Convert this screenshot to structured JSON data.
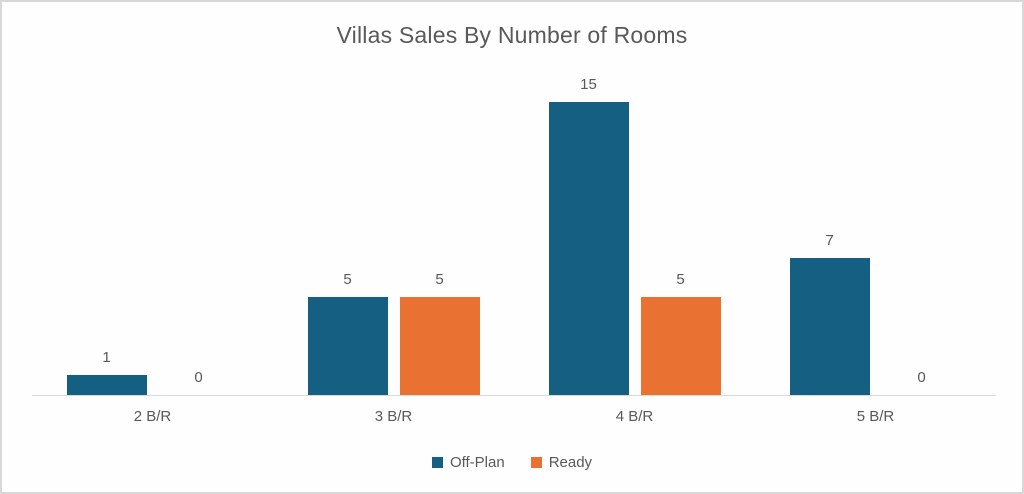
{
  "chart_data": {
    "type": "bar",
    "title": "Villas Sales By Number of Rooms",
    "categories": [
      "2 B/R",
      "3 B/R",
      "4 B/R",
      "5 B/R"
    ],
    "series": [
      {
        "name": "Off-Plan",
        "color": "#156082",
        "values": [
          1,
          5,
          15,
          7
        ]
      },
      {
        "name": "Ready",
        "color": "#E97132",
        "values": [
          0,
          5,
          5,
          0
        ]
      }
    ],
    "xlabel": "",
    "ylabel": "",
    "ylim": [
      0,
      15
    ],
    "data_labels": true,
    "grid": false,
    "legend_position": "bottom"
  },
  "colors": {
    "title_text": "#595959",
    "label_text": "#595959",
    "axis_line": "#d9d9d9",
    "frame_border": "#d8d8d8",
    "background": "#fefefe"
  }
}
